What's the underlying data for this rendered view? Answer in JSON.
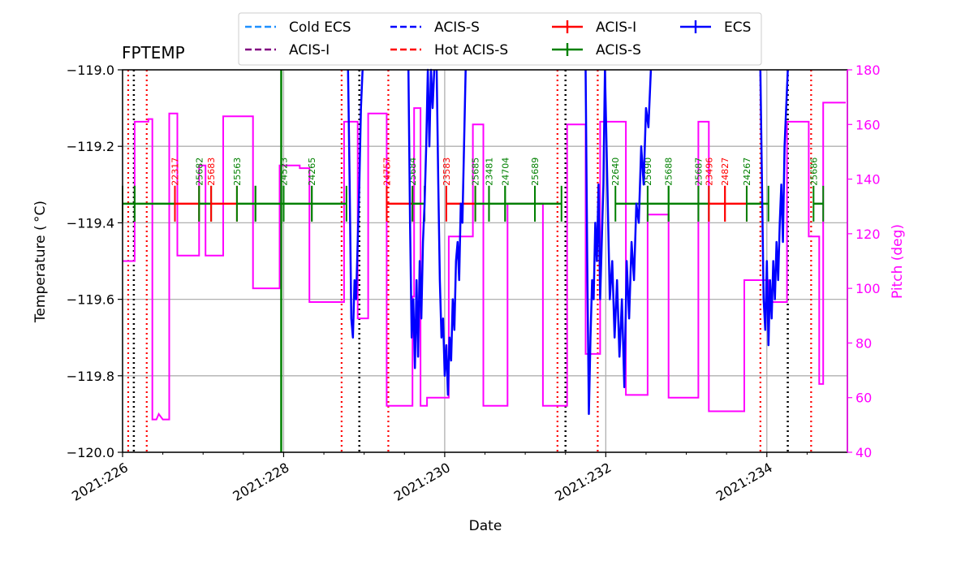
{
  "chart_data": {
    "type": "line",
    "title": "FPTEMP",
    "xlabel": "Date",
    "ylabel": "Temperature ($^\\circ$C)",
    "ylabel_display": "Temperature ( °C)",
    "y2label": "Pitch (deg)",
    "xlim": [
      226.0,
      235.0
    ],
    "ylim": [
      -120.0,
      -119.0
    ],
    "y2lim": [
      40,
      180
    ],
    "xticks": [
      226,
      228,
      230,
      232,
      234
    ],
    "xtick_labels": [
      "2021:226",
      "2021:228",
      "2021:230",
      "2021:232",
      "2021:234"
    ],
    "yticks": [
      -120.0,
      -119.8,
      -119.6,
      -119.4,
      -119.2,
      -119.0
    ],
    "ytick_labels": [
      "−120.0",
      "−119.8",
      "−119.6",
      "−119.4",
      "−119.2",
      "−119.0"
    ],
    "y2ticks": [
      40,
      60,
      80,
      100,
      120,
      140,
      160,
      180
    ],
    "y2tick_labels": [
      "40",
      "60",
      "80",
      "100",
      "120",
      "140",
      "160",
      "180"
    ],
    "grid": true,
    "legend_position": "top-center",
    "colors": {
      "cold_ecs": "#1e90ff",
      "acis_s_line": "#0000ff",
      "hot_acis_s": "#ff0000",
      "acis_i_purple": "#800080",
      "acis_i_obs": "#ff0000",
      "acis_s_obs": "#008000",
      "ecs": "#0000ff",
      "pitch": "#ff00ff",
      "radzone": "#000000"
    },
    "legend": [
      {
        "label": "Cold ECS",
        "style": "dashed",
        "color": "#1e90ff"
      },
      {
        "label": "ACIS-I",
        "style": "dashed",
        "color": "#800080"
      },
      {
        "label": "ACIS-S",
        "style": "dashed",
        "color": "#0000ff"
      },
      {
        "label": "Hot ACIS-S",
        "style": "dashed",
        "color": "#ff0000"
      },
      {
        "label": "ACIS-I",
        "style": "errorbar",
        "color": "#ff0000"
      },
      {
        "label": "ACIS-S",
        "style": "errorbar",
        "color": "#008000"
      },
      {
        "label": "ECS",
        "style": "errorbar",
        "color": "#0000ff"
      }
    ],
    "pitch_series": {
      "name": "Pitch",
      "axis": "right",
      "x": [
        226.0,
        226.15,
        226.15,
        226.32,
        226.32,
        226.37,
        226.37,
        226.42,
        226.45,
        226.5,
        226.5,
        226.58,
        226.58,
        226.68,
        226.68,
        226.95,
        226.95,
        227.03,
        227.03,
        227.25,
        227.25,
        227.5,
        227.5,
        227.62,
        227.62,
        227.65,
        227.65,
        227.95,
        227.95,
        228.2,
        228.2,
        228.32,
        228.32,
        228.75,
        228.75,
        228.92,
        228.92,
        229.05,
        229.05,
        229.1,
        229.1,
        229.28,
        229.28,
        229.6,
        229.6,
        229.62,
        229.62,
        229.7,
        229.7,
        229.78,
        229.78,
        230.0,
        230.0,
        230.05,
        230.05,
        230.35,
        230.35,
        230.48,
        230.48,
        230.78,
        230.78,
        231.22,
        231.22,
        231.45,
        231.45,
        231.52,
        231.52,
        231.75,
        231.75,
        231.93,
        231.93,
        232.25,
        232.25,
        232.52,
        232.52,
        232.72,
        232.72,
        232.78,
        232.78,
        232.8,
        232.8,
        233.15,
        233.15,
        233.28,
        233.28,
        233.72,
        233.72,
        233.75,
        233.75,
        234.02,
        234.02,
        234.2,
        234.2,
        234.25,
        234.25,
        234.52,
        234.52,
        234.65,
        234.65,
        234.7,
        234.7,
        234.98
      ],
      "y": [
        110,
        110,
        161,
        161,
        162,
        162,
        52,
        52,
        54,
        52,
        52,
        52,
        164,
        164,
        112,
        112,
        145,
        145,
        112,
        112,
        163,
        163,
        163,
        163,
        100,
        100,
        100,
        100,
        145,
        145,
        144,
        144,
        95,
        95,
        161,
        161,
        89,
        89,
        164,
        164,
        164,
        164,
        57,
        57,
        97,
        97,
        166,
        166,
        57,
        57,
        60,
        60,
        60,
        60,
        119,
        119,
        160,
        160,
        57,
        57,
        131,
        131,
        57,
        57,
        57,
        57,
        160,
        160,
        76,
        76,
        161,
        161,
        61,
        61,
        127,
        127,
        127,
        127,
        60,
        60,
        60,
        60,
        161,
        161,
        55,
        55,
        103,
        103,
        103,
        103,
        95,
        95,
        95,
        95,
        161,
        161,
        119,
        119,
        65,
        65,
        168,
        168
      ]
    },
    "ecs_series": {
      "name": "ECS",
      "axis": "left",
      "segments": [
        {
          "x": [
            228.8,
            228.82,
            228.84,
            228.86,
            228.88,
            228.9,
            228.92,
            228.94,
            228.96,
            228.98
          ],
          "y": [
            -119.0,
            -119.3,
            -119.65,
            -119.7,
            -119.55,
            -119.6,
            -119.45,
            -119.3,
            -119.1,
            -119.0
          ]
        },
        {
          "x": [
            229.55,
            229.57,
            229.59,
            229.61,
            229.63,
            229.65,
            229.67,
            229.69,
            229.71,
            229.73,
            229.75,
            229.77,
            229.79,
            229.81,
            229.83,
            229.85,
            229.87
          ],
          "y": [
            -119.0,
            -119.4,
            -119.7,
            -119.6,
            -119.78,
            -119.55,
            -119.75,
            -119.5,
            -119.65,
            -119.45,
            -119.35,
            -119.2,
            -119.0,
            -119.2,
            -119.0,
            -119.1,
            -119.0
          ]
        },
        {
          "x": [
            229.9,
            229.92,
            229.94,
            229.96,
            229.98,
            230.0,
            230.02,
            230.04,
            230.06,
            230.08,
            230.1,
            230.12,
            230.14,
            230.16,
            230.18,
            230.2,
            230.22,
            230.24,
            230.26
          ],
          "y": [
            -119.0,
            -119.3,
            -119.55,
            -119.7,
            -119.65,
            -119.8,
            -119.72,
            -119.85,
            -119.7,
            -119.76,
            -119.6,
            -119.68,
            -119.5,
            -119.45,
            -119.55,
            -119.35,
            -119.4,
            -119.2,
            -119.0
          ]
        },
        {
          "x": [
            231.75,
            231.77,
            231.79,
            231.81,
            231.83,
            231.85,
            231.87,
            231.89,
            231.91,
            231.93,
            231.95,
            231.97,
            231.99
          ],
          "y": [
            -119.0,
            -119.5,
            -119.9,
            -119.7,
            -119.55,
            -119.6,
            -119.4,
            -119.5,
            -119.3,
            -119.6,
            -119.45,
            -119.3,
            -119.0
          ]
        },
        {
          "x": [
            231.99,
            232.02,
            232.05,
            232.08,
            232.11,
            232.14,
            232.17,
            232.2,
            232.23,
            232.26,
            232.29,
            232.32,
            232.35,
            232.38,
            232.41,
            232.44,
            232.47,
            232.5,
            232.53,
            232.56
          ],
          "y": [
            -119.0,
            -119.3,
            -119.6,
            -119.5,
            -119.7,
            -119.55,
            -119.75,
            -119.6,
            -119.83,
            -119.5,
            -119.65,
            -119.45,
            -119.55,
            -119.35,
            -119.4,
            -119.2,
            -119.3,
            -119.1,
            -119.15,
            -119.0
          ]
        },
        {
          "x": [
            233.92,
            233.94,
            233.96,
            233.98,
            234.0,
            234.02,
            234.04,
            234.06,
            234.08,
            234.1,
            234.12,
            234.14,
            234.16,
            234.18,
            234.2,
            234.22,
            234.24,
            234.26
          ],
          "y": [
            -119.0,
            -119.3,
            -119.6,
            -119.68,
            -119.5,
            -119.72,
            -119.55,
            -119.65,
            -119.5,
            -119.6,
            -119.45,
            -119.55,
            -119.4,
            -119.3,
            -119.45,
            -119.2,
            -119.1,
            -119.0
          ]
        }
      ]
    },
    "observations": {
      "y": -119.35,
      "items": [
        {
          "obsid": "",
          "instrument": "ACIS-S",
          "start": 226.0,
          "stop": 226.15
        },
        {
          "obsid": "",
          "instrument": "ACIS-S",
          "start": 226.15,
          "stop": 226.65
        },
        {
          "obsid": "22317",
          "instrument": "ACIS-I",
          "start": 226.65,
          "stop": 226.95
        },
        {
          "obsid": "25682",
          "instrument": "ACIS-S",
          "start": 226.95,
          "stop": 227.1
        },
        {
          "obsid": "25683",
          "instrument": "ACIS-I",
          "start": 227.1,
          "stop": 227.42
        },
        {
          "obsid": "25563",
          "instrument": "ACIS-S",
          "start": 227.42,
          "stop": 227.65
        },
        {
          "obsid": "",
          "instrument": "ACIS-S",
          "start": 227.65,
          "stop": 228.0
        },
        {
          "obsid": "24523",
          "instrument": "ACIS-S",
          "start": 228.0,
          "stop": 228.35
        },
        {
          "obsid": "24265",
          "instrument": "ACIS-S",
          "start": 228.35,
          "stop": 228.78
        },
        {
          "obsid": "24757",
          "instrument": "ACIS-I",
          "start": 229.28,
          "stop": 229.6
        },
        {
          "obsid": "25684",
          "instrument": "ACIS-S",
          "start": 229.6,
          "stop": 229.75
        },
        {
          "obsid": "23583",
          "instrument": "ACIS-I",
          "start": 230.02,
          "stop": 230.38
        },
        {
          "obsid": "25685",
          "instrument": "ACIS-S",
          "start": 230.38,
          "stop": 230.55
        },
        {
          "obsid": "23481",
          "instrument": "ACIS-S",
          "start": 230.55,
          "stop": 230.75
        },
        {
          "obsid": "24704",
          "instrument": "ACIS-S",
          "start": 230.75,
          "stop": 231.12
        },
        {
          "obsid": "25689",
          "instrument": "ACIS-S",
          "start": 231.12,
          "stop": 231.45
        },
        {
          "obsid": "22640",
          "instrument": "ACIS-S",
          "start": 232.12,
          "stop": 232.52
        },
        {
          "obsid": "25690",
          "instrument": "ACIS-S",
          "start": 232.52,
          "stop": 232.78
        },
        {
          "obsid": "25688",
          "instrument": "ACIS-S",
          "start": 232.78,
          "stop": 233.15
        },
        {
          "obsid": "25687",
          "instrument": "ACIS-S",
          "start": 233.15,
          "stop": 233.28
        },
        {
          "obsid": "23496",
          "instrument": "ACIS-I",
          "start": 233.28,
          "stop": 233.48
        },
        {
          "obsid": "24827",
          "instrument": "ACIS-I",
          "start": 233.48,
          "stop": 233.75
        },
        {
          "obsid": "24267",
          "instrument": "ACIS-S",
          "start": 233.75,
          "stop": 234.02
        },
        {
          "obsid": "25686",
          "instrument": "ACIS-S",
          "start": 234.58,
          "stop": 234.7
        }
      ]
    },
    "tall_marker": {
      "x": 227.97,
      "color": "#008000"
    },
    "red_dotted_lines": [
      226.07,
      226.3,
      228.72,
      229.3,
      231.4,
      231.9,
      233.92,
      234.55
    ],
    "black_dotted_lines": [
      226.14,
      228.94,
      231.5,
      234.26
    ]
  }
}
